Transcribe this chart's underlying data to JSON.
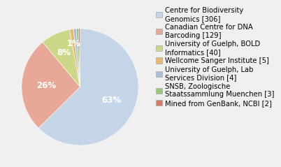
{
  "labels": [
    "Centre for Biodiversity\nGenomics [306]",
    "Canadian Centre for DNA\nBarcoding [129]",
    "University of Guelph, BOLD\nInformatics [40]",
    "Wellcome Sanger Institute [5]",
    "University of Guelph, Lab\nServices Division [4]",
    "SNSB, Zoologische\nStaatssammlung Muenchen [3]",
    "Mined from GenBank, NCBI [2]"
  ],
  "values": [
    306,
    129,
    40,
    5,
    4,
    3,
    2
  ],
  "colors": [
    "#c5d5e8",
    "#e8a898",
    "#ccd888",
    "#e8b870",
    "#a8c0d8",
    "#98c878",
    "#d87868"
  ],
  "startangle": 90,
  "background_color": "#f0f0f0",
  "legend_fontsize": 7.2,
  "pct_fontsize": 8.5
}
